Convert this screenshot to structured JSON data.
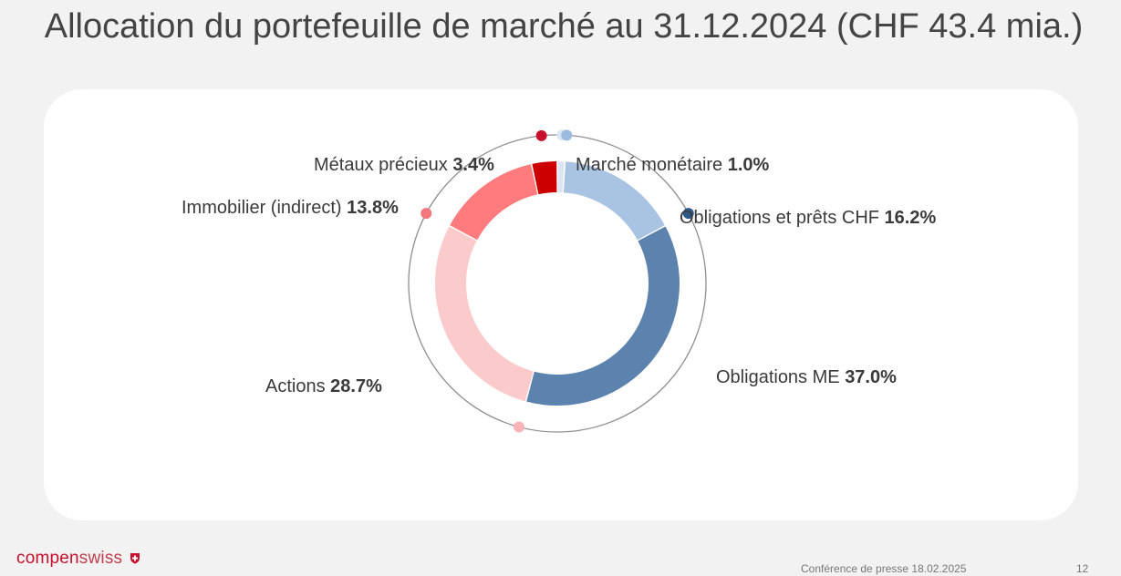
{
  "title": "Allocation du portefeuille de marché au 31.12.2024 (CHF 43.4 mia.)",
  "chart_data": {
    "type": "pie",
    "variant": "donut",
    "title": "Allocation du portefeuille de marché au 31.12.2024 (CHF 43.4 mia.)",
    "unit": "%",
    "slices": [
      {
        "name": "Marché monétaire",
        "value": 1.0,
        "value_label": "1.0%",
        "color": "#dce6f3",
        "marker_color": "#dce6f3"
      },
      {
        "name": "Obligations et prêts CHF",
        "value": 16.2,
        "value_label": "16.2%",
        "color": "#a9c4e3",
        "marker_color": "#9bbbe0"
      },
      {
        "name": "Obligations ME",
        "value": 37.0,
        "value_label": "37.0%",
        "color": "#5b83ad",
        "marker_color": "#2e5a8a"
      },
      {
        "name": "Actions",
        "value": 28.7,
        "value_label": "28.7%",
        "color": "#fbcaca",
        "marker_color": "#f7b5b7"
      },
      {
        "name": "Immobilier (indirect)",
        "value": 13.8,
        "value_label": "13.8%",
        "color": "#ff7b7d",
        "marker_color": "#f2787c"
      },
      {
        "name": "Métaux précieux",
        "value": 3.4,
        "value_label": "3.4%",
        "color": "#cc0000",
        "marker_color": "#c8102e"
      }
    ]
  },
  "footer": {
    "logo_bold": "compen",
    "logo_light": "swiss",
    "event": "Conférence de presse 18.02.2025",
    "page_number": "12"
  }
}
